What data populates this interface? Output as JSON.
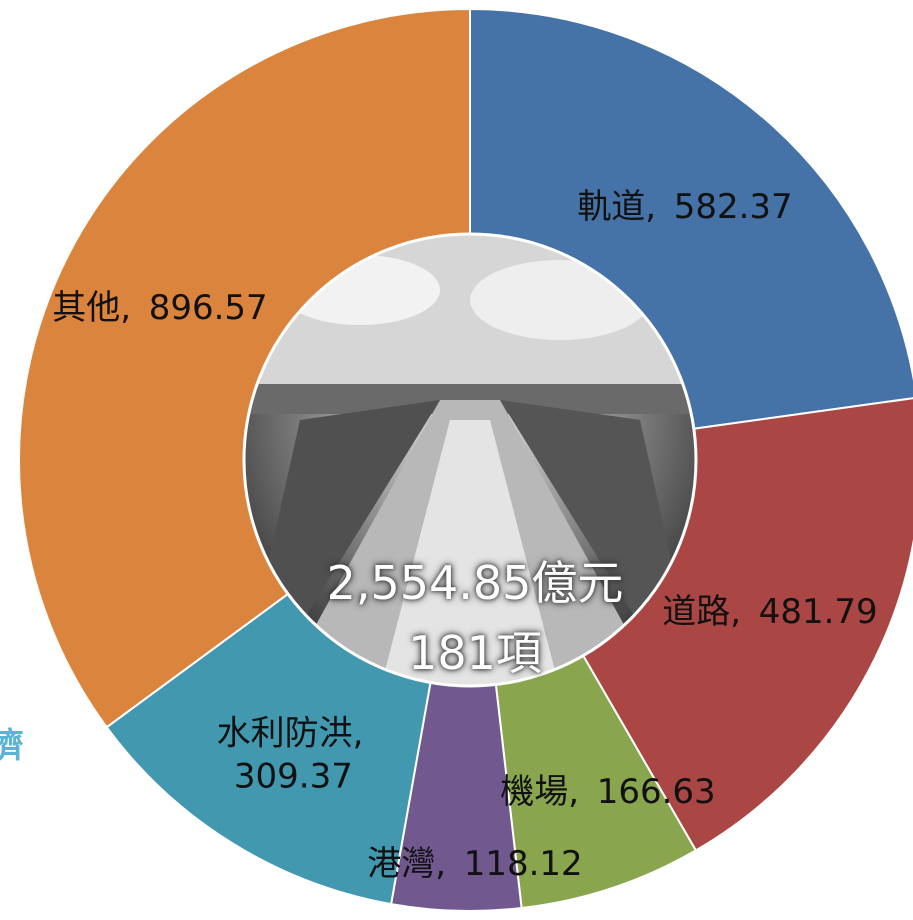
{
  "chart_data": {
    "type": "donut",
    "categories": [
      "軌道",
      "道路",
      "機場",
      "港灣",
      "水利防洪",
      "其他"
    ],
    "values": [
      582.37,
      481.79,
      166.63,
      118.12,
      309.37,
      896.57
    ],
    "colors": [
      "#4572a7",
      "#aa4643",
      "#89a54e",
      "#71588f",
      "#4198af",
      "#db843d"
    ],
    "center_text": [
      "2,554.85億元",
      "181項"
    ],
    "annotation": "濟"
  }
}
